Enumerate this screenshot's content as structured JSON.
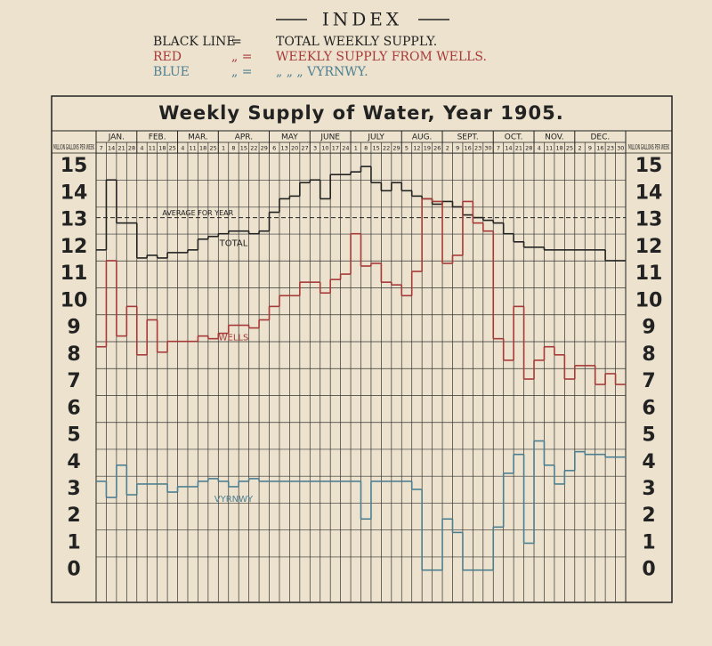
{
  "index": {
    "title": "INDEX",
    "lines": [
      {
        "label": "BLACK LINE",
        "sign": "=",
        "text": "TOTAL WEEKLY SUPPLY.",
        "color": "#222222"
      },
      {
        "label": "RED",
        "sign": "„ =",
        "text": "WEEKLY SUPPLY FROM WELLS.",
        "color": "#a63a3a"
      },
      {
        "label": "BLUE",
        "sign": "„ =",
        "text": "„     „     „     VYRNWY.",
        "color": "#4d7f92"
      }
    ]
  },
  "chart_data": {
    "type": "step",
    "title": "Weekly Supply of Water, Year 1905.",
    "axis_label": "MILLION GALLONS PER WEEK",
    "months": [
      {
        "name": "JAN.",
        "weeks": [
          "7",
          "14",
          "21",
          "28"
        ]
      },
      {
        "name": "FEB.",
        "weeks": [
          "4",
          "11",
          "18",
          "25"
        ]
      },
      {
        "name": "MAR.",
        "weeks": [
          "4",
          "11",
          "18",
          "25"
        ]
      },
      {
        "name": "APR.",
        "weeks": [
          "1",
          "8",
          "15",
          "22",
          "29"
        ]
      },
      {
        "name": "MAY",
        "weeks": [
          "6",
          "13",
          "20",
          "27"
        ]
      },
      {
        "name": "JUNE",
        "weeks": [
          "3",
          "10",
          "17",
          "24"
        ]
      },
      {
        "name": "JULY",
        "weeks": [
          "1",
          "8",
          "15",
          "22",
          "29"
        ]
      },
      {
        "name": "AUG.",
        "weeks": [
          "5",
          "12",
          "19",
          "26"
        ]
      },
      {
        "name": "SEPT.",
        "weeks": [
          "2",
          "9",
          "16",
          "23",
          "30"
        ]
      },
      {
        "name": "OCT.",
        "weeks": [
          "7",
          "14",
          "21",
          "28"
        ]
      },
      {
        "name": "NOV.",
        "weeks": [
          "4",
          "11",
          "18",
          "25"
        ]
      },
      {
        "name": "DEC.",
        "weeks": [
          "2",
          "9",
          "16",
          "23",
          "30"
        ]
      }
    ],
    "series": [
      {
        "name": "TOTAL",
        "color": "#222222",
        "label_week": 13,
        "values": [
          11.9,
          14.5,
          12.9,
          12.9,
          11.6,
          11.7,
          11.6,
          11.8,
          11.8,
          11.9,
          12.3,
          12.4,
          12.5,
          12.6,
          12.6,
          12.5,
          12.6,
          13.3,
          13.8,
          13.9,
          14.4,
          14.5,
          13.8,
          14.7,
          14.7,
          14.8,
          15.0,
          14.4,
          14.1,
          14.4,
          14.1,
          13.9,
          13.8,
          13.6,
          13.7,
          13.5,
          13.2,
          13.1,
          13.0,
          12.9,
          12.5,
          12.2,
          12.0,
          12.0,
          11.9,
          11.9,
          11.9,
          11.9,
          11.9,
          11.9,
          11.5,
          11.5
        ]
      },
      {
        "name": "WELLS",
        "color": "#a63a3a",
        "label_week": 13,
        "values": [
          8.3,
          11.5,
          8.7,
          9.8,
          8.0,
          9.3,
          8.1,
          8.5,
          8.5,
          8.5,
          8.7,
          8.6,
          8.8,
          9.1,
          9.1,
          9.0,
          9.3,
          9.8,
          10.2,
          10.2,
          10.7,
          10.7,
          10.3,
          10.8,
          11.0,
          12.5,
          11.3,
          11.4,
          10.7,
          10.6,
          10.2,
          11.1,
          13.8,
          13.7,
          11.4,
          11.7,
          13.7,
          12.9,
          12.6,
          8.6,
          7.8,
          9.8,
          7.1,
          7.8,
          8.3,
          8.0,
          7.1,
          7.6,
          7.6,
          6.9,
          7.3,
          6.9
        ]
      },
      {
        "name": "VYRNWY",
        "color": "#4d7f92",
        "label_week": 13,
        "values": [
          3.3,
          2.7,
          3.9,
          2.8,
          3.2,
          3.2,
          3.2,
          2.9,
          3.1,
          3.1,
          3.3,
          3.4,
          3.3,
          3.1,
          3.3,
          3.4,
          3.3,
          3.3,
          3.3,
          3.3,
          3.3,
          3.3,
          3.3,
          3.3,
          3.3,
          3.3,
          1.9,
          3.3,
          3.3,
          3.3,
          3.3,
          3.0,
          0.0,
          0.0,
          1.9,
          1.4,
          0.0,
          0.0,
          0.0,
          1.6,
          3.6,
          4.3,
          1.0,
          4.8,
          3.9,
          3.2,
          3.7,
          4.4,
          4.3,
          4.3,
          4.2,
          4.2
        ]
      }
    ],
    "average": {
      "label": "AVERAGE FOR YEAR",
      "value": 13.1
    },
    "ylim": [
      -1.2,
      15.5
    ],
    "yticks": [
      0,
      1,
      2,
      3,
      4,
      5,
      6,
      7,
      8,
      9,
      10,
      11,
      12,
      13,
      14,
      15
    ],
    "grid": true
  }
}
